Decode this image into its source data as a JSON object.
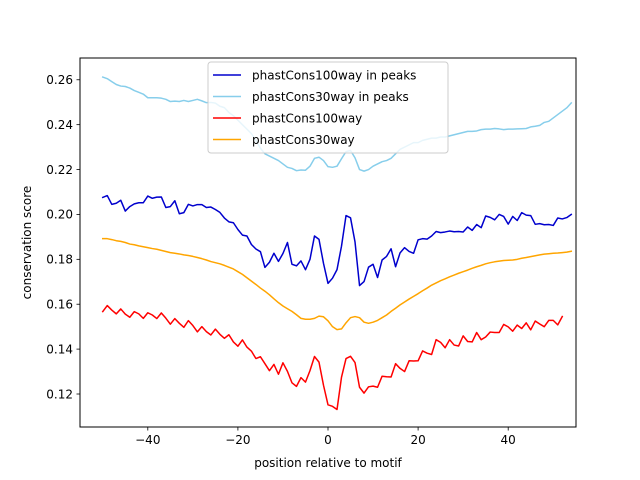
{
  "chart_data": {
    "type": "line",
    "title": "",
    "xlabel": "position relative to motif",
    "ylabel": "conservation score",
    "xlim": [
      -55.05,
      55.05
    ],
    "ylim": [
      0.1053,
      0.2697
    ],
    "xticks": [
      -40,
      -20,
      0,
      20,
      40
    ],
    "xtick_labels": [
      "−40",
      "−20",
      "0",
      "20",
      "40"
    ],
    "yticks": [
      0.12,
      0.14,
      0.16,
      0.18,
      0.2,
      0.22,
      0.24,
      0.26
    ],
    "ytick_labels": [
      "0.12",
      "0.14",
      "0.16",
      "0.18",
      "0.20",
      "0.22",
      "0.24",
      "0.26"
    ],
    "grid": false,
    "legend_location": "upper center",
    "x_start": -50,
    "x_step": 1,
    "series": [
      {
        "name": "phastCons100way in peaks",
        "color": "#0000cd",
        "values": [
          0.2076,
          0.2084,
          0.2045,
          0.205,
          0.2063,
          0.2015,
          0.2035,
          0.2047,
          0.2052,
          0.2052,
          0.2082,
          0.2072,
          0.2077,
          0.2078,
          0.2031,
          0.2035,
          0.2061,
          0.2003,
          0.2008,
          0.2045,
          0.2038,
          0.2044,
          0.2044,
          0.2031,
          0.2033,
          0.2022,
          0.2009,
          0.1984,
          0.1967,
          0.1963,
          0.1933,
          0.1908,
          0.1904,
          0.1866,
          0.1846,
          0.1834,
          0.1764,
          0.1787,
          0.1827,
          0.1791,
          0.1826,
          0.1875,
          0.1778,
          0.1771,
          0.1793,
          0.1754,
          0.18,
          0.1904,
          0.1889,
          0.1782,
          0.1693,
          0.1716,
          0.1754,
          0.1859,
          0.1995,
          0.1985,
          0.1877,
          0.1683,
          0.1701,
          0.1765,
          0.1778,
          0.1719,
          0.1797,
          0.1813,
          0.1847,
          0.1767,
          0.1829,
          0.1852,
          0.1835,
          0.1827,
          0.1887,
          0.1892,
          0.189,
          0.1904,
          0.1924,
          0.1919,
          0.1922,
          0.1926,
          0.1923,
          0.1924,
          0.1922,
          0.1944,
          0.1929,
          0.1955,
          0.1941,
          0.1993,
          0.1987,
          0.1976,
          0.2,
          0.1991,
          0.1957,
          0.1991,
          0.1973,
          0.2008,
          0.1997,
          0.1995,
          0.1956,
          0.1959,
          0.1954,
          0.1955,
          0.1951,
          0.1984,
          0.198,
          0.1986,
          0.2
        ]
      },
      {
        "name": "phastCons30way in peaks",
        "color": "#87ceeb",
        "values": [
          0.2612,
          0.2605,
          0.2592,
          0.2579,
          0.2572,
          0.257,
          0.2563,
          0.2552,
          0.2544,
          0.2536,
          0.252,
          0.252,
          0.252,
          0.2518,
          0.2513,
          0.2503,
          0.2505,
          0.2503,
          0.2508,
          0.2503,
          0.2508,
          0.2513,
          0.2506,
          0.2498,
          0.2499,
          0.2496,
          0.2482,
          0.2476,
          0.2454,
          0.244,
          0.242,
          0.24,
          0.238,
          0.236,
          0.233,
          0.2295,
          0.227,
          0.226,
          0.225,
          0.224,
          0.2225,
          0.221,
          0.2205,
          0.2195,
          0.2198,
          0.2197,
          0.2215,
          0.225,
          0.2255,
          0.224,
          0.2213,
          0.221,
          0.2215,
          0.2248,
          0.228,
          0.2285,
          0.2252,
          0.22,
          0.2193,
          0.22,
          0.2215,
          0.2225,
          0.2235,
          0.224,
          0.225,
          0.227,
          0.229,
          0.23,
          0.231,
          0.232,
          0.232,
          0.233,
          0.2335,
          0.234,
          0.234,
          0.2345,
          0.2345,
          0.235,
          0.2355,
          0.236,
          0.2365,
          0.237,
          0.237,
          0.2372,
          0.2378,
          0.238,
          0.238,
          0.2383,
          0.2381,
          0.2378,
          0.238,
          0.238,
          0.2381,
          0.2382,
          0.2383,
          0.239,
          0.2393,
          0.2397,
          0.241,
          0.2415,
          0.243,
          0.2445,
          0.246,
          0.2475,
          0.2497
        ]
      },
      {
        "name": "phastCons100way",
        "color": "#ff0000",
        "values": [
          0.1567,
          0.1594,
          0.1574,
          0.1557,
          0.1579,
          0.1556,
          0.1542,
          0.1567,
          0.1557,
          0.1537,
          0.1562,
          0.1552,
          0.1536,
          0.1561,
          0.1538,
          0.1511,
          0.1536,
          0.1515,
          0.1497,
          0.1527,
          0.1505,
          0.1477,
          0.15,
          0.1478,
          0.1463,
          0.1489,
          0.1466,
          0.1448,
          0.1464,
          0.1432,
          0.1413,
          0.1441,
          0.1409,
          0.1391,
          0.1358,
          0.1366,
          0.1335,
          0.1304,
          0.1332,
          0.1288,
          0.1339,
          0.1301,
          0.125,
          0.1234,
          0.1273,
          0.1253,
          0.1304,
          0.1367,
          0.1342,
          0.1239,
          0.1152,
          0.1145,
          0.1131,
          0.1275,
          0.1358,
          0.1368,
          0.134,
          0.123,
          0.1204,
          0.1232,
          0.1235,
          0.123,
          0.1279,
          0.1277,
          0.1276,
          0.1335,
          0.1314,
          0.13,
          0.1348,
          0.1347,
          0.1348,
          0.1392,
          0.1382,
          0.1376,
          0.1442,
          0.143,
          0.1406,
          0.1442,
          0.1418,
          0.1414,
          0.1459,
          0.1434,
          0.1432,
          0.1474,
          0.1442,
          0.1454,
          0.1476,
          0.1474,
          0.1474,
          0.151,
          0.1499,
          0.148,
          0.1507,
          0.1492,
          0.1517,
          0.1486,
          0.1525,
          0.1512,
          0.15,
          0.1528,
          0.1528,
          0.1508,
          0.1545
        ]
      },
      {
        "name": "phastCons30way",
        "color": "#ffa500",
        "values": [
          0.1892,
          0.1892,
          0.1888,
          0.1883,
          0.188,
          0.1875,
          0.1868,
          0.1865,
          0.186,
          0.1856,
          0.1852,
          0.1848,
          0.1845,
          0.184,
          0.1835,
          0.183,
          0.1827,
          0.1824,
          0.182,
          0.1817,
          0.1813,
          0.1808,
          0.1803,
          0.1797,
          0.179,
          0.1785,
          0.178,
          0.1773,
          0.1765,
          0.1757,
          0.1745,
          0.1733,
          0.1718,
          0.1703,
          0.1688,
          0.1672,
          0.1658,
          0.1642,
          0.1624,
          0.1607,
          0.1592,
          0.158,
          0.1568,
          0.1553,
          0.1537,
          0.1533,
          0.1533,
          0.1537,
          0.1547,
          0.1544,
          0.1526,
          0.15,
          0.1487,
          0.149,
          0.1517,
          0.154,
          0.1545,
          0.154,
          0.152,
          0.1515,
          0.152,
          0.1528,
          0.154,
          0.1552,
          0.1568,
          0.1582,
          0.1597,
          0.161,
          0.1623,
          0.1635,
          0.1647,
          0.166,
          0.1672,
          0.1685,
          0.1695,
          0.1705,
          0.1713,
          0.1722,
          0.173,
          0.1738,
          0.1745,
          0.1752,
          0.176,
          0.1767,
          0.1773,
          0.178,
          0.1785,
          0.1789,
          0.1792,
          0.1795,
          0.1796,
          0.1797,
          0.18,
          0.1805,
          0.1808,
          0.1812,
          0.1816,
          0.182,
          0.1823,
          0.1825,
          0.1827,
          0.1828,
          0.183,
          0.1832,
          0.1836
        ]
      }
    ]
  }
}
